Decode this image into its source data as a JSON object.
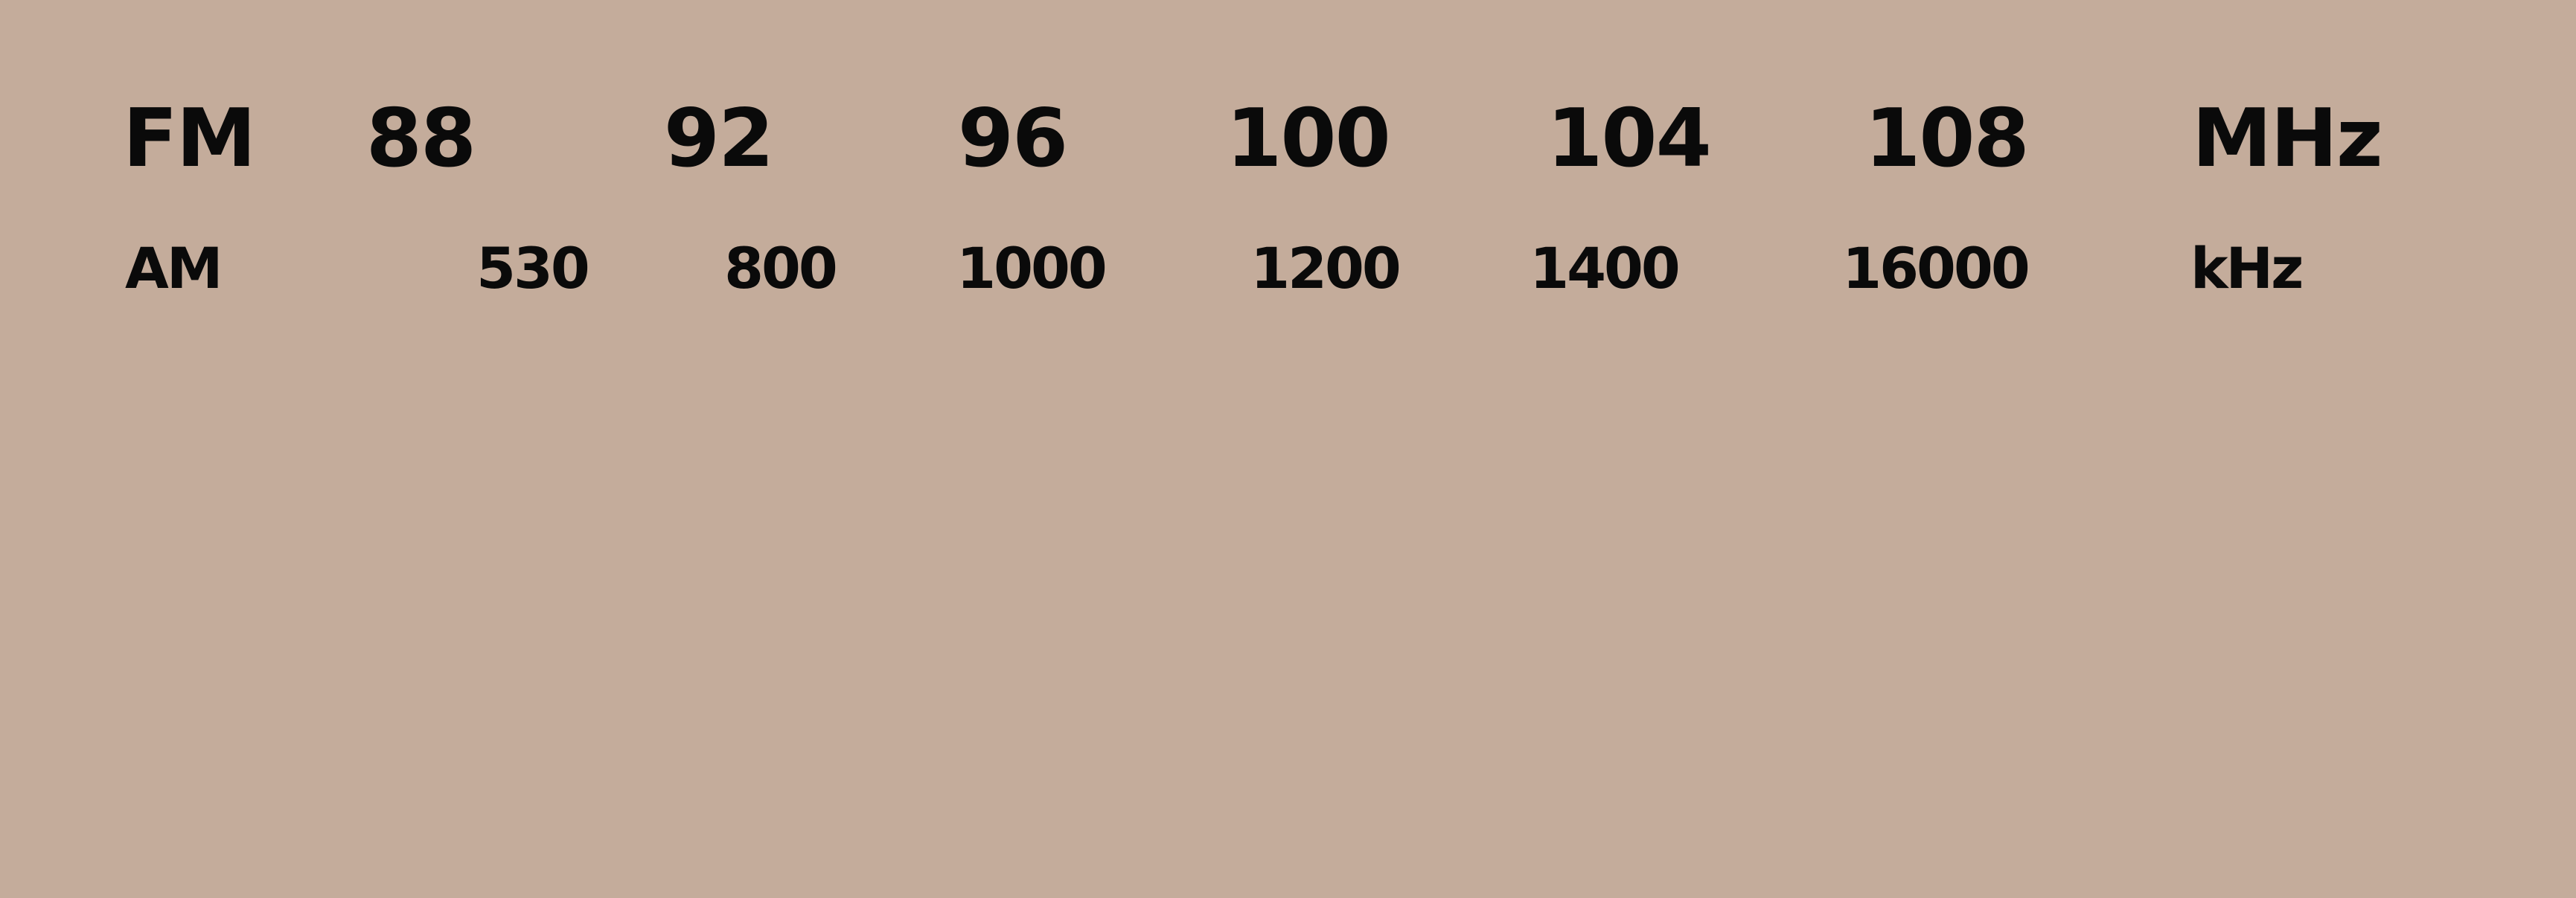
{
  "dial": {
    "background": "#c4ac9b",
    "text_color": "#0a0a0a",
    "fm": {
      "band": "FM",
      "unit": "MHz",
      "ticks": [
        "88",
        "92",
        "96",
        "100",
        "104",
        "108"
      ]
    },
    "am": {
      "band": "AM",
      "unit": "kHz",
      "ticks": [
        "530",
        "800",
        "1000",
        "1200",
        "1400",
        "16000"
      ]
    }
  }
}
